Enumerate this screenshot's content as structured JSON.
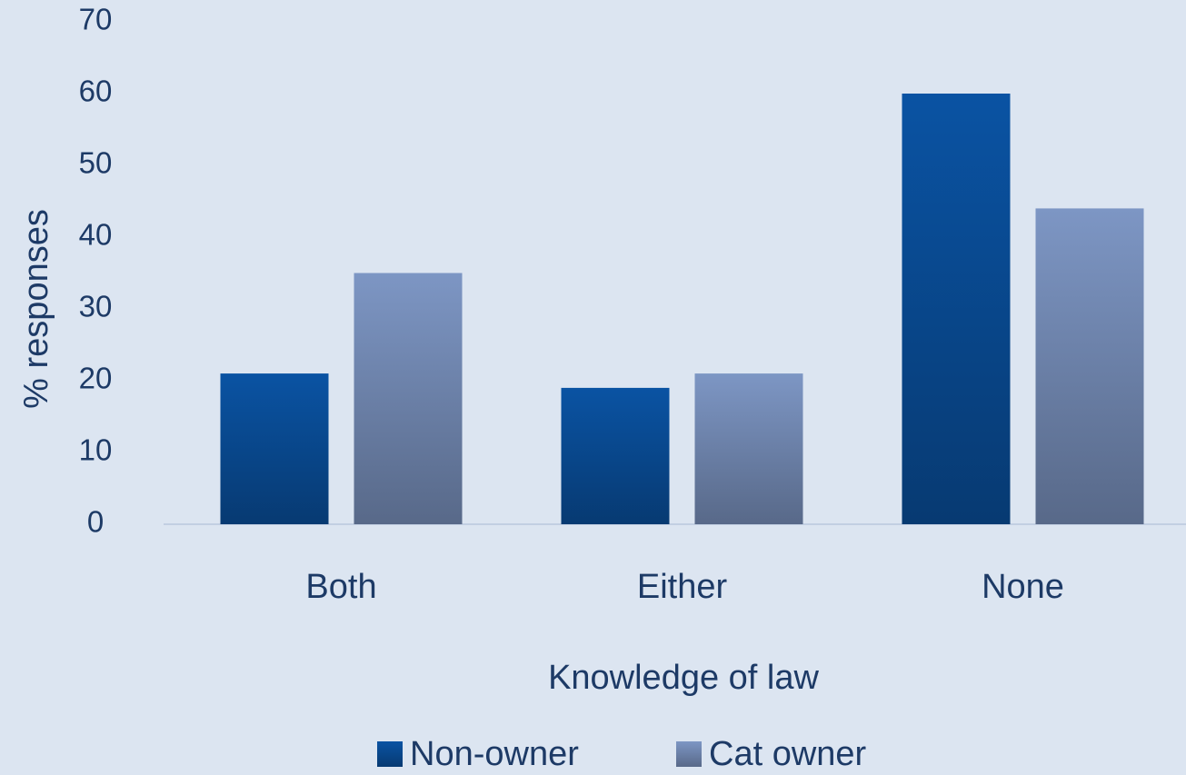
{
  "chart_data": {
    "type": "bar",
    "x_label": "Knowledge of law",
    "y_label": "% responses",
    "categories": [
      "Both",
      "Either",
      "None"
    ],
    "series": [
      {
        "name": "Non-owner",
        "color": "#0a53a3",
        "values": [
          21,
          19,
          60
        ]
      },
      {
        "name": "Cat owner",
        "color": "#7d96c4",
        "values": [
          35,
          21,
          44
        ]
      }
    ],
    "ylim": [
      0,
      70
    ],
    "yticks": [
      0,
      10,
      20,
      30,
      40,
      50,
      60,
      70
    ],
    "grid": false,
    "legend": "bottom"
  }
}
